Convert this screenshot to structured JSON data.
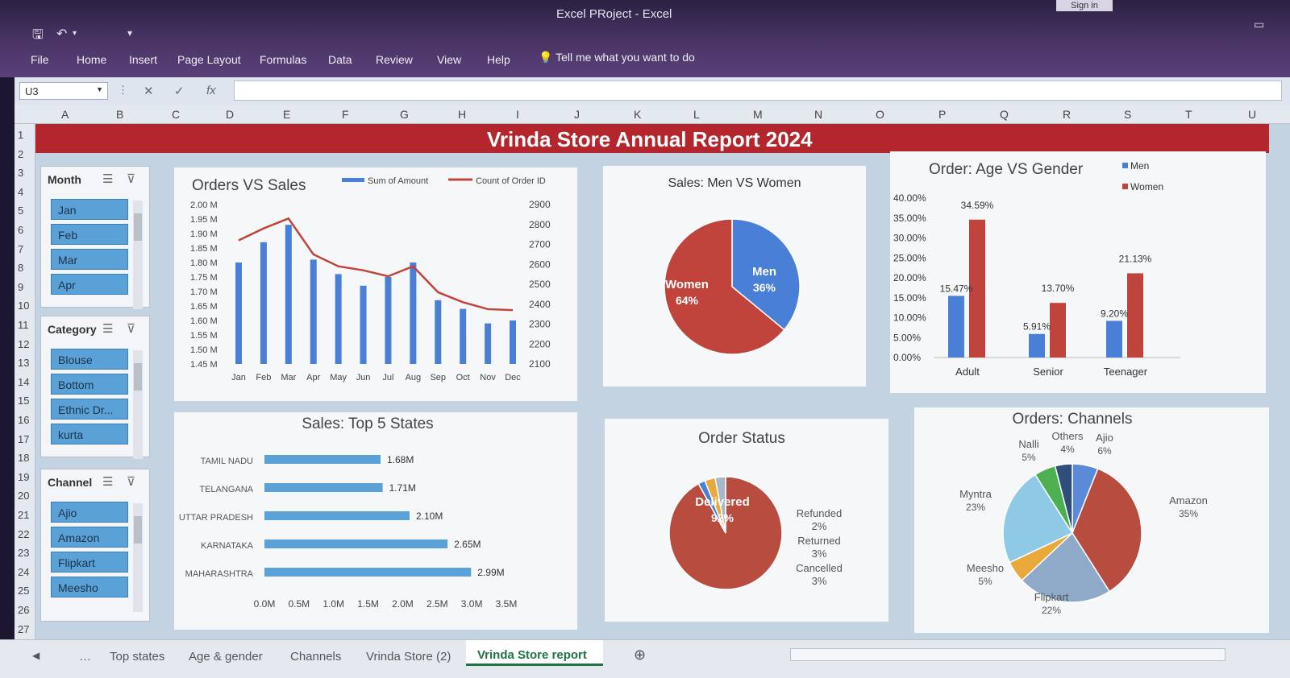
{
  "window": {
    "title": "Excel PRoject  -  Excel",
    "sign_in": "Sign in"
  },
  "ribbon": {
    "tabs": [
      "File",
      "Home",
      "Insert",
      "Page Layout",
      "Formulas",
      "Data",
      "Review",
      "View",
      "Help"
    ],
    "tell_me": "Tell me what you want to do"
  },
  "formula_bar": {
    "name_box": "U3",
    "formula": ""
  },
  "grid": {
    "columns": [
      "A",
      "B",
      "C",
      "D",
      "E",
      "F",
      "G",
      "H",
      "I",
      "J",
      "K",
      "L",
      "M",
      "N",
      "O",
      "P",
      "Q",
      "R",
      "S",
      "T",
      "U"
    ],
    "rows": [
      "1",
      "2",
      "3",
      "4",
      "5",
      "6",
      "7",
      "8",
      "9",
      "10",
      "11",
      "12",
      "13",
      "14",
      "15",
      "16",
      "17",
      "18",
      "19",
      "20",
      "21",
      "22",
      "23",
      "24",
      "25",
      "26",
      "27"
    ]
  },
  "report_title": "Vrinda Store Annual Report 2024",
  "slicers": [
    {
      "title": "Month",
      "items": [
        "Jan",
        "Feb",
        "Mar",
        "Apr"
      ]
    },
    {
      "title": "Category",
      "items": [
        "Blouse",
        "Bottom",
        "Ethnic Dr...",
        "kurta"
      ]
    },
    {
      "title": "Channel",
      "items": [
        "Ajio",
        "Amazon",
        "Flipkart",
        "Meesho"
      ]
    }
  ],
  "sheet_tabs": [
    "Top states",
    "Age & gender",
    "Channels",
    "Vrinda Store (2)",
    "Vrinda Store report"
  ],
  "active_tab": "Vrinda Store report",
  "colors": {
    "blue": "#4a7fd8",
    "red": "#c0443c",
    "banner": "#b3262d",
    "slicer_item": "#5aa1d8"
  },
  "chart_data": [
    {
      "type": "bar",
      "title": "Orders VS Sales",
      "categories": [
        "Jan",
        "Feb",
        "Mar",
        "Apr",
        "May",
        "Jun",
        "Jul",
        "Aug",
        "Sep",
        "Oct",
        "Nov",
        "Dec"
      ],
      "series": [
        {
          "name": "Sum of Amount",
          "type": "bar",
          "axis": "left",
          "values": [
            1.8,
            1.87,
            1.93,
            1.81,
            1.76,
            1.72,
            1.75,
            1.8,
            1.67,
            1.64,
            1.59,
            1.6
          ]
        },
        {
          "name": "Count of Order ID",
          "type": "line",
          "axis": "right",
          "values": [
            2720,
            2780,
            2830,
            2650,
            2590,
            2570,
            2540,
            2590,
            2460,
            2410,
            2375,
            2370
          ]
        }
      ],
      "left_ticks": [
        "2.00 M",
        "1.95 M",
        "1.90 M",
        "1.85 M",
        "1.80 M",
        "1.75 M",
        "1.70 M",
        "1.65 M",
        "1.60 M",
        "1.55 M",
        "1.50 M",
        "1.45 M"
      ],
      "right_ticks": [
        "2900",
        "2800",
        "2700",
        "2600",
        "2500",
        "2400",
        "2300",
        "2200",
        "2100"
      ],
      "ylim_left": [
        1.45,
        2.0
      ],
      "ylim_right": [
        2100,
        2900
      ]
    },
    {
      "type": "pie",
      "title": "Sales: Men VS Women",
      "slices": [
        {
          "label": "Men",
          "value": 36,
          "text": "36%"
        },
        {
          "label": "Women",
          "value": 64,
          "text": "64%"
        }
      ]
    },
    {
      "type": "bar",
      "title": "Order: Age VS Gender",
      "categories": [
        "Adult",
        "Senior",
        "Teenager"
      ],
      "series": [
        {
          "name": "Men",
          "values": [
            15.47,
            5.91,
            9.2
          ],
          "labels": [
            "15.47%",
            "5.91%",
            "9.20%"
          ]
        },
        {
          "name": "Women",
          "values": [
            34.59,
            13.7,
            21.13
          ],
          "labels": [
            "34.59%",
            "13.70%",
            "21.13%"
          ]
        }
      ],
      "y_ticks": [
        "40.00%",
        "35.00%",
        "30.00%",
        "25.00%",
        "20.00%",
        "15.00%",
        "10.00%",
        "5.00%",
        "0.00%"
      ],
      "ylim": [
        0,
        40
      ]
    },
    {
      "type": "bar",
      "orientation": "horizontal",
      "title": "Sales: Top 5 States",
      "categories": [
        "TAMIL NADU",
        "TELANGANA",
        "UTTAR PRADESH",
        "KARNATAKA",
        "MAHARASHTRA"
      ],
      "values": [
        1.68,
        1.71,
        2.1,
        2.65,
        2.99
      ],
      "labels": [
        "1.68M",
        "1.71M",
        "2.10M",
        "2.65M",
        "2.99M"
      ],
      "x_ticks": [
        "0.0M",
        "0.5M",
        "1.0M",
        "1.5M",
        "2.0M",
        "2.5M",
        "3.0M",
        "3.5M"
      ],
      "xlim": [
        0,
        3.5
      ]
    },
    {
      "type": "pie",
      "title": "Order Status",
      "slices": [
        {
          "label": "Delivered",
          "value": 92,
          "text": "92%"
        },
        {
          "label": "Refunded",
          "value": 2,
          "text": "2%"
        },
        {
          "label": "Returned",
          "value": 3,
          "text": "3%"
        },
        {
          "label": "Cancelled",
          "value": 3,
          "text": "3%"
        }
      ]
    },
    {
      "type": "pie",
      "title": "Orders: Channels",
      "slices": [
        {
          "label": "Ajio",
          "value": 6,
          "text": "6%"
        },
        {
          "label": "Amazon",
          "value": 35,
          "text": "35%"
        },
        {
          "label": "Flipkart",
          "value": 22,
          "text": "22%"
        },
        {
          "label": "Meesho",
          "value": 5,
          "text": "5%"
        },
        {
          "label": "Myntra",
          "value": 23,
          "text": "23%"
        },
        {
          "label": "Nalli",
          "value": 5,
          "text": "5%"
        },
        {
          "label": "Others",
          "value": 4,
          "text": "4%"
        }
      ]
    }
  ]
}
